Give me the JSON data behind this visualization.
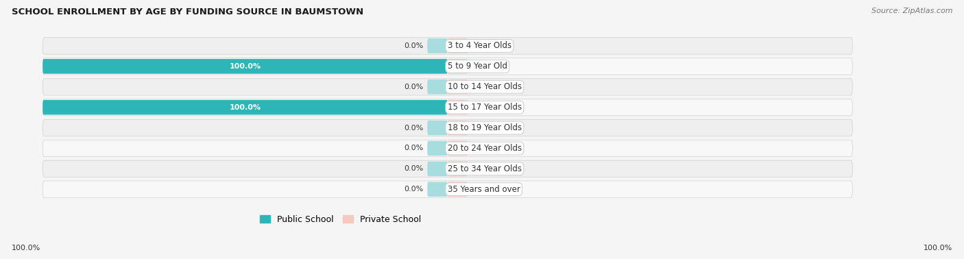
{
  "title": "SCHOOL ENROLLMENT BY AGE BY FUNDING SOURCE IN BAUMSTOWN",
  "source": "Source: ZipAtlas.com",
  "categories": [
    "3 to 4 Year Olds",
    "5 to 9 Year Old",
    "10 to 14 Year Olds",
    "15 to 17 Year Olds",
    "18 to 19 Year Olds",
    "20 to 24 Year Olds",
    "25 to 34 Year Olds",
    "35 Years and over"
  ],
  "public_values": [
    0.0,
    100.0,
    0.0,
    100.0,
    0.0,
    0.0,
    0.0,
    0.0
  ],
  "private_values": [
    0.0,
    0.0,
    0.0,
    0.0,
    0.0,
    0.0,
    0.0,
    0.0
  ],
  "public_color": "#2db5b8",
  "public_stub_color": "#a8dde0",
  "private_color": "#f0a8a0",
  "private_stub_color": "#f5c8c0",
  "row_bg_light": "#efefef",
  "row_bg_white": "#f8f8f8",
  "label_color": "#333333",
  "title_color": "#1a1a1a",
  "fig_bg": "#f5f5f5",
  "axis_range": 100,
  "stub_size": 5,
  "figsize": [
    14.06,
    3.78
  ],
  "dpi": 100
}
